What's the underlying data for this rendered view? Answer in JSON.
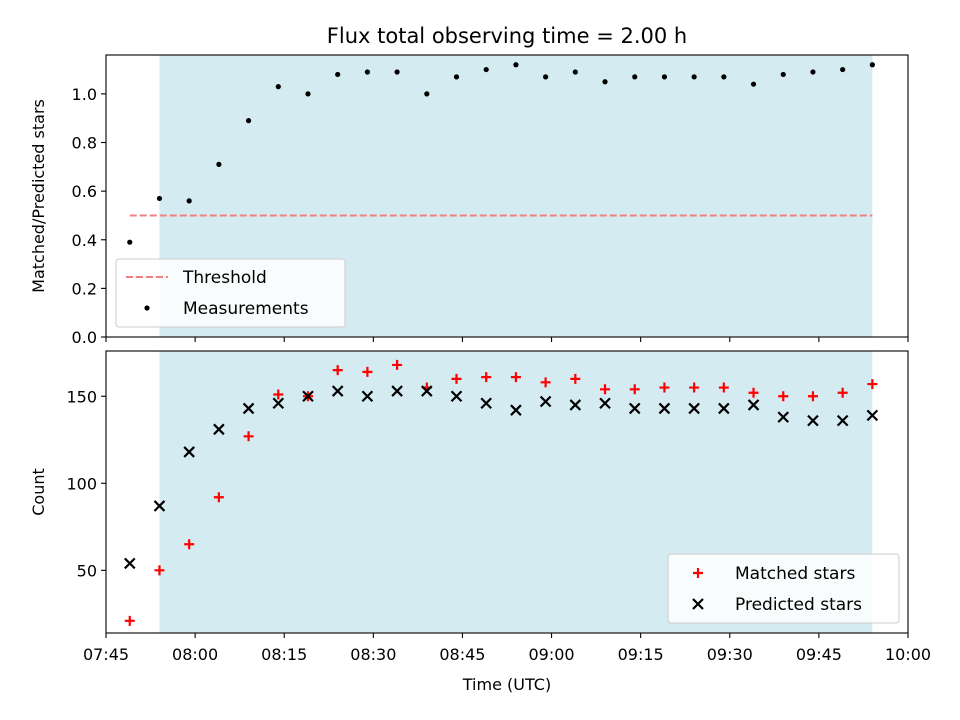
{
  "figure": {
    "title": "Flux total observing time = 2.00 h"
  },
  "chart_data": [
    {
      "type": "scatter",
      "title": "Flux total observing time = 2.00 h",
      "xlabel": "",
      "ylabel": "Matched/Predicted stars",
      "x_unit": "minutes after 07:40 UTC",
      "xlim": [
        5,
        140
      ],
      "ylim": [
        0,
        1.16
      ],
      "yticks": [
        0.0,
        0.2,
        0.4,
        0.6,
        0.8,
        1.0
      ],
      "ytick_labels": [
        "0.0",
        "0.2",
        "0.4",
        "0.6",
        "0.8",
        "1.0"
      ],
      "shaded_region": {
        "x": [
          14,
          134
        ],
        "color": "#add8e6"
      },
      "legend": {
        "placement": "lower-left",
        "entries": [
          "Threshold",
          "Measurements"
        ]
      },
      "threshold": {
        "name": "Threshold",
        "y": 0.5,
        "x": [
          9,
          134
        ],
        "color": "#f08080",
        "style": "dashed"
      },
      "series": [
        {
          "name": "Measurements",
          "marker": "dot",
          "color": "#000000",
          "x": [
            9,
            14,
            19,
            24,
            29,
            34,
            39,
            44,
            49,
            54,
            59,
            64,
            69,
            74,
            79,
            84,
            89,
            94,
            99,
            104,
            109,
            114,
            119,
            124,
            129,
            134
          ],
          "y": [
            0.39,
            0.57,
            0.56,
            0.71,
            0.89,
            1.03,
            1.0,
            1.08,
            1.09,
            1.09,
            1.0,
            1.07,
            1.1,
            1.12,
            1.07,
            1.09,
            1.05,
            1.07,
            1.07,
            1.07,
            1.07,
            1.04,
            1.08,
            1.09,
            1.1,
            1.12
          ]
        }
      ]
    },
    {
      "type": "scatter",
      "xlabel": "Time (UTC)",
      "ylabel": "Count",
      "x_unit": "minutes after 07:40 UTC",
      "xlim": [
        5,
        140
      ],
      "ylim": [
        14,
        176
      ],
      "yticks": [
        50,
        100,
        150
      ],
      "ytick_labels": [
        "50",
        "100",
        "150"
      ],
      "xticks": [
        5,
        20,
        35,
        50,
        65,
        80,
        95,
        110,
        125,
        140
      ],
      "xtick_labels": [
        "07:45",
        "08:00",
        "08:15",
        "08:30",
        "08:45",
        "09:00",
        "09:15",
        "09:30",
        "09:45",
        "10:00"
      ],
      "shaded_region": {
        "x": [
          14,
          134
        ],
        "color": "#add8e6"
      },
      "legend": {
        "placement": "lower-right",
        "entries": [
          "Matched stars",
          "Predicted stars"
        ]
      },
      "series": [
        {
          "name": "Matched stars",
          "marker": "plus",
          "color": "#ff0000",
          "x": [
            9,
            14,
            19,
            24,
            29,
            34,
            39,
            44,
            49,
            54,
            59,
            64,
            69,
            74,
            79,
            84,
            89,
            94,
            99,
            104,
            109,
            114,
            119,
            124,
            129,
            134
          ],
          "y": [
            21,
            50,
            65,
            92,
            127,
            151,
            150,
            165,
            164,
            168,
            155,
            160,
            161,
            161,
            158,
            160,
            154,
            154,
            155,
            155,
            155,
            152,
            150,
            150,
            152,
            157
          ]
        },
        {
          "name": "Predicted stars",
          "marker": "x",
          "color": "#000000",
          "x": [
            9,
            14,
            19,
            24,
            29,
            34,
            39,
            44,
            49,
            54,
            59,
            64,
            69,
            74,
            79,
            84,
            89,
            94,
            99,
            104,
            109,
            114,
            119,
            124,
            129,
            134
          ],
          "y": [
            54,
            87,
            118,
            131,
            143,
            146,
            150,
            153,
            150,
            153,
            153,
            150,
            146,
            142,
            147,
            145,
            146,
            143,
            143,
            143,
            143,
            145,
            138,
            136,
            136,
            139
          ]
        }
      ]
    }
  ]
}
